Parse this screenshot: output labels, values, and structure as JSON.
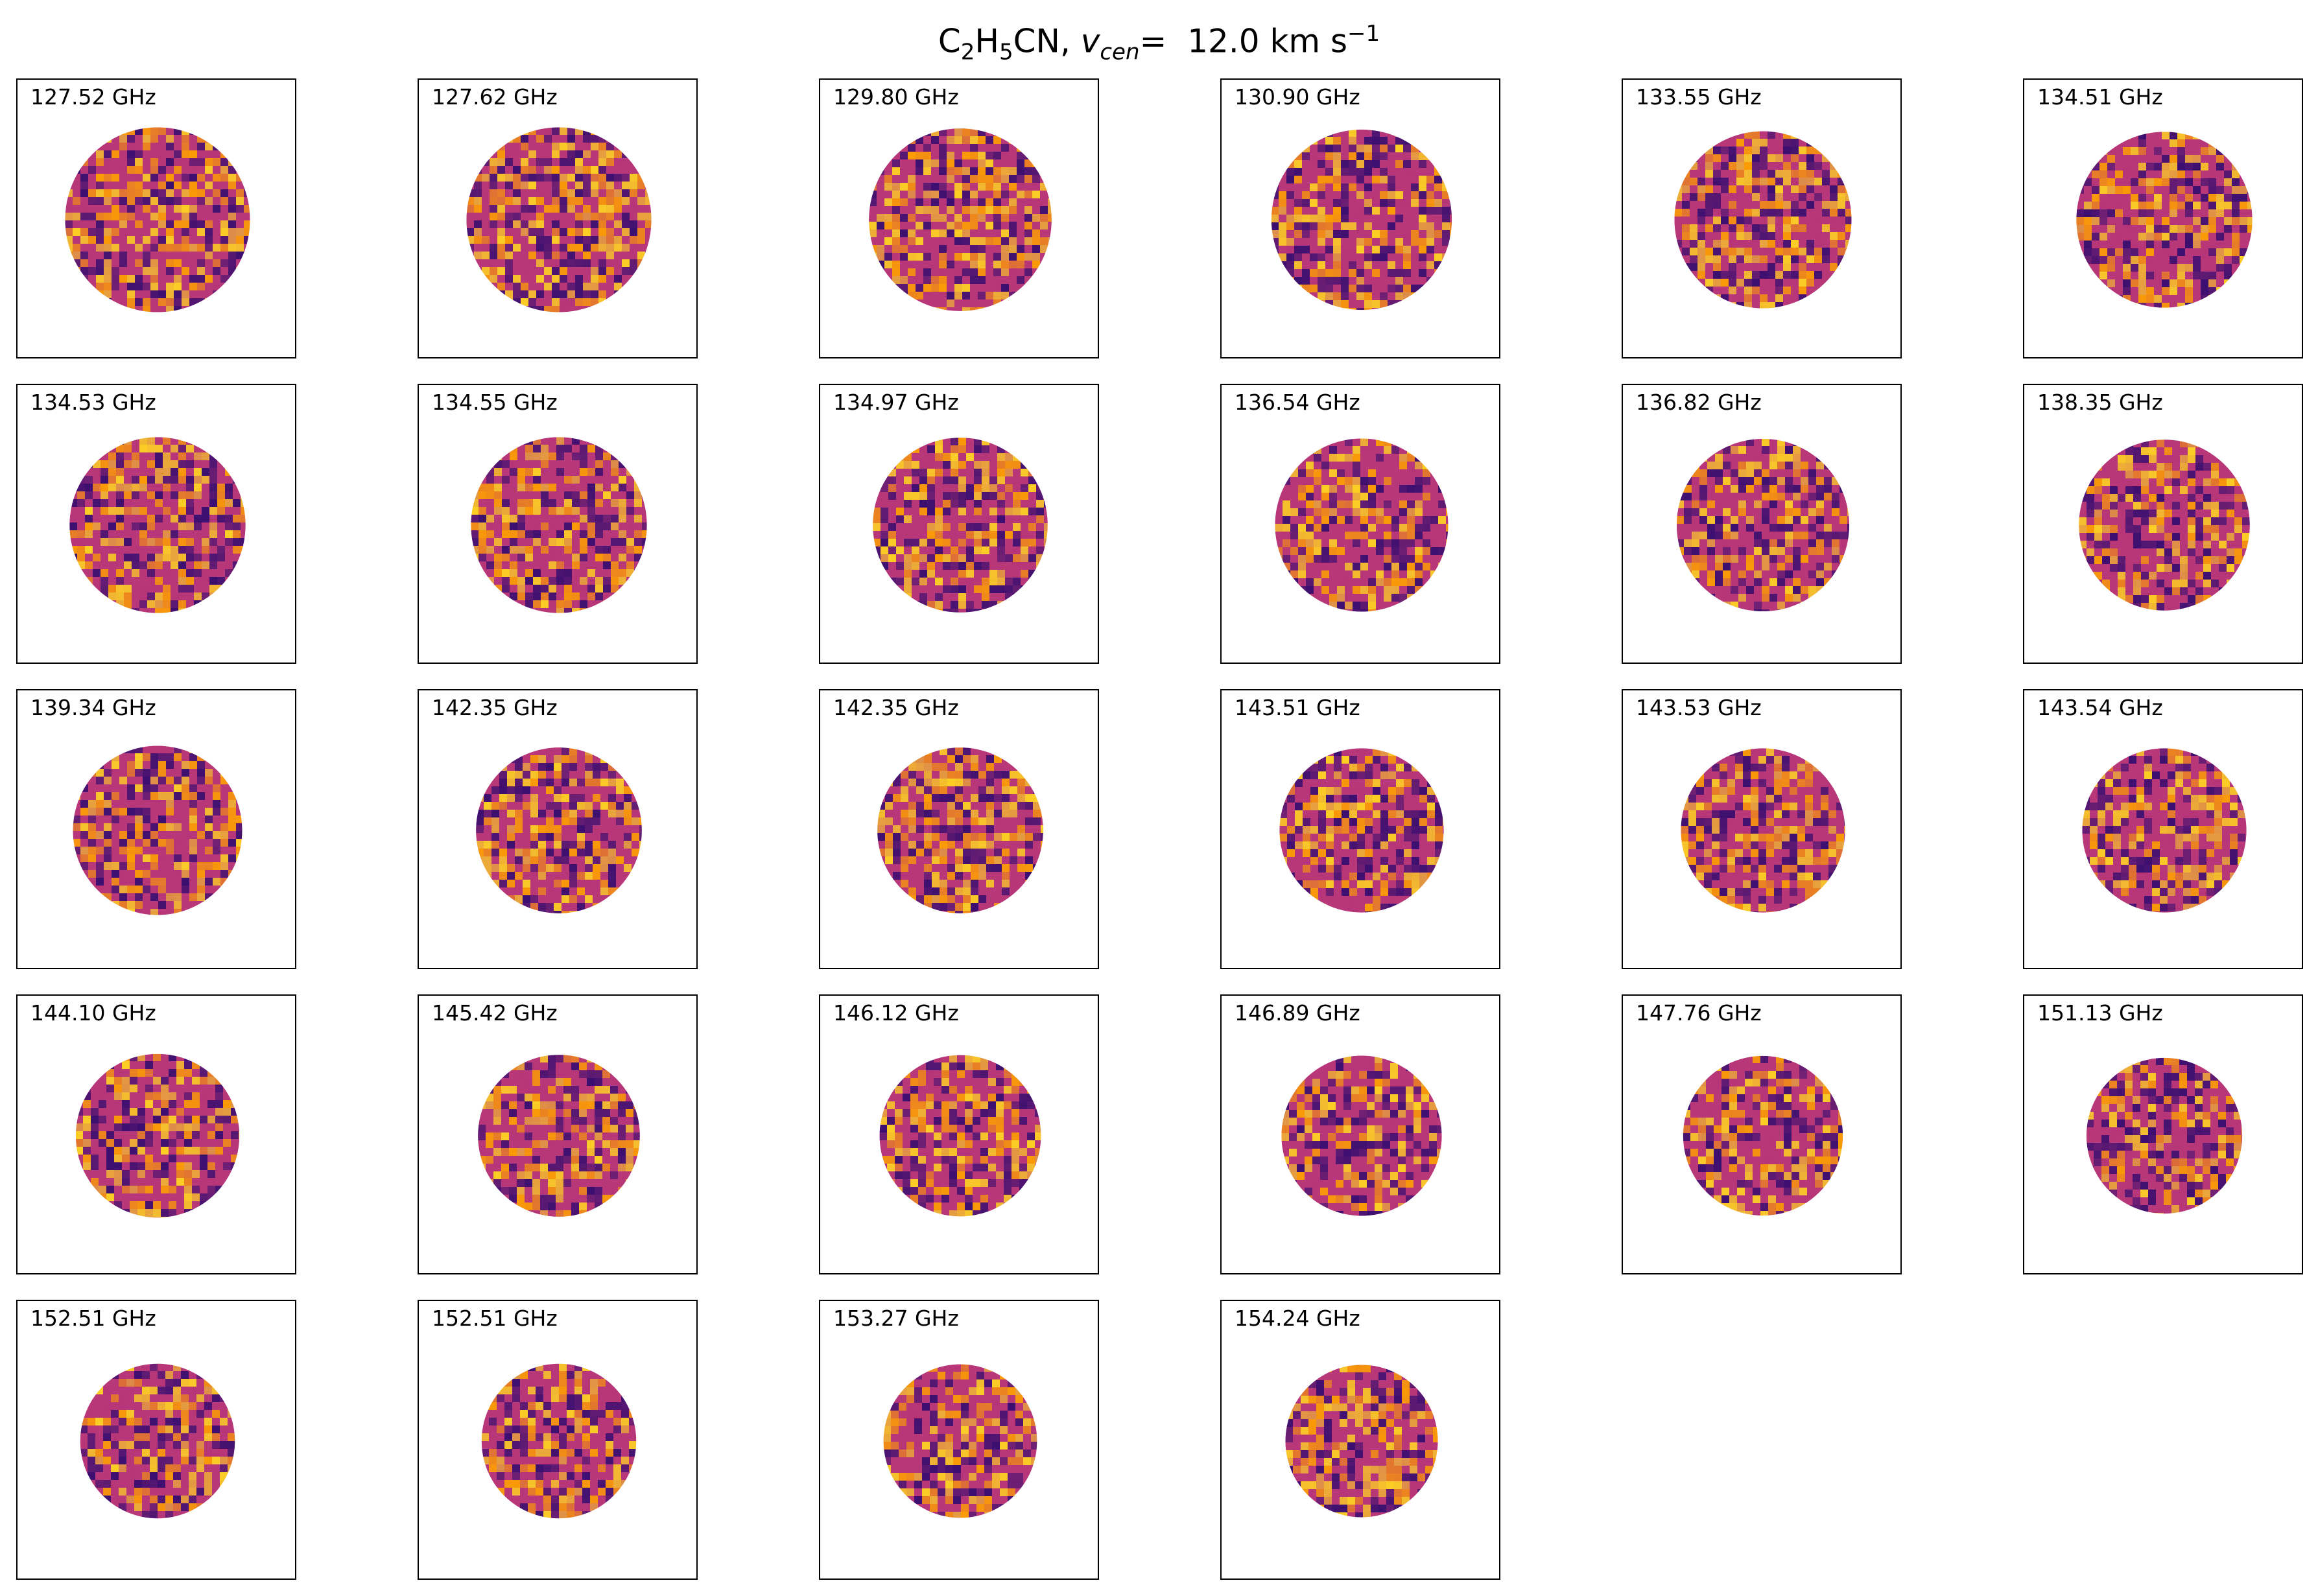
{
  "title": {
    "species_base": "C",
    "species_sub1": "2",
    "species_mid": "H",
    "species_sub2": "5",
    "species_end": "CN,",
    "vcen_symbol": "v",
    "vcen_sub": "cen",
    "vcen_eq": "=",
    "vcen_value": "12.0 km s",
    "vcen_exp": "−1"
  },
  "chart_data": {
    "type": "heatmap",
    "layout": {
      "rows": 5,
      "columns": 6
    },
    "colormap": "inferno",
    "colors": {
      "dark": "#3b0f70",
      "mid": "#b73779",
      "bright": "#fb9b06",
      "hot": "#fcce25"
    },
    "panels": [
      {
        "label": "127.52 GHz",
        "disk_radius_frac": 0.33
      },
      {
        "label": "127.62 GHz",
        "disk_radius_frac": 0.33
      },
      {
        "label": "129.80 GHz",
        "disk_radius_frac": 0.326
      },
      {
        "label": "130.90 GHz",
        "disk_radius_frac": 0.322
      },
      {
        "label": "133.55 GHz",
        "disk_radius_frac": 0.316
      },
      {
        "label": "134.51 GHz",
        "disk_radius_frac": 0.314
      },
      {
        "label": "134.53 GHz",
        "disk_radius_frac": 0.314
      },
      {
        "label": "134.55 GHz",
        "disk_radius_frac": 0.314
      },
      {
        "label": "134.97 GHz",
        "disk_radius_frac": 0.312
      },
      {
        "label": "136.54 GHz",
        "disk_radius_frac": 0.309
      },
      {
        "label": "136.82 GHz",
        "disk_radius_frac": 0.308
      },
      {
        "label": "138.35 GHz",
        "disk_radius_frac": 0.305
      },
      {
        "label": "139.34 GHz",
        "disk_radius_frac": 0.302
      },
      {
        "label": "142.35 GHz",
        "disk_radius_frac": 0.296
      },
      {
        "label": "142.35 GHz",
        "disk_radius_frac": 0.296
      },
      {
        "label": "143.51 GHz",
        "disk_radius_frac": 0.293
      },
      {
        "label": "143.53 GHz",
        "disk_radius_frac": 0.293
      },
      {
        "label": "143.54 GHz",
        "disk_radius_frac": 0.293
      },
      {
        "label": "144.10 GHz",
        "disk_radius_frac": 0.292
      },
      {
        "label": "145.42 GHz",
        "disk_radius_frac": 0.289
      },
      {
        "label": "146.12 GHz",
        "disk_radius_frac": 0.288
      },
      {
        "label": "146.89 GHz",
        "disk_radius_frac": 0.286
      },
      {
        "label": "147.76 GHz",
        "disk_radius_frac": 0.285
      },
      {
        "label": "151.13 GHz",
        "disk_radius_frac": 0.278
      },
      {
        "label": "152.51 GHz",
        "disk_radius_frac": 0.276
      },
      {
        "label": "152.51 GHz",
        "disk_radius_frac": 0.276
      },
      {
        "label": "153.27 GHz",
        "disk_radius_frac": 0.274
      },
      {
        "label": "154.24 GHz",
        "disk_radius_frac": 0.272
      }
    ]
  }
}
